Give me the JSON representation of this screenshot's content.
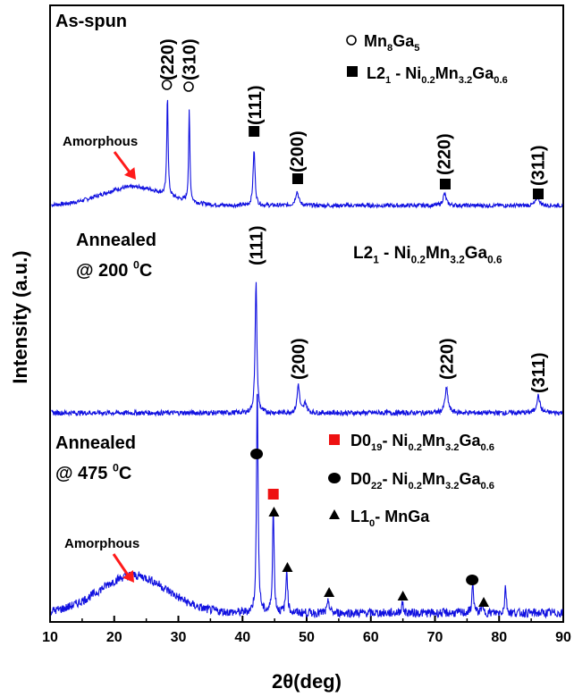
{
  "chart_data": {
    "type": "line",
    "xlabel": "2θ(deg)",
    "ylabel": "Intensity (a.u.)",
    "xlim": [
      10,
      90
    ],
    "x_ticks": [
      "10",
      "20",
      "30",
      "40",
      "50",
      "60",
      "70",
      "80",
      "90"
    ],
    "line_color": "#1010e0",
    "arrow_color": "#ff1a1a",
    "series": [
      {
        "title": "As-spun",
        "peaks": [
          {
            "x": 28.3,
            "h": 0.88,
            "w": 0.12
          },
          {
            "x": 31.7,
            "h": 0.78,
            "w": 0.12
          },
          {
            "x": 41.8,
            "h": 0.47,
            "w": 0.18
          },
          {
            "x": 48.5,
            "h": 0.12,
            "w": 0.3
          },
          {
            "x": 71.5,
            "h": 0.1,
            "w": 0.3
          },
          {
            "x": 86.0,
            "h": 0.08,
            "w": 0.3
          }
        ],
        "hump": {
          "x": 23,
          "h": 0.16,
          "w": 7
        },
        "labels": [
          "(220)",
          "(310)",
          "(111)",
          "(200)",
          "(220)",
          "(311)"
        ],
        "annotation": "Amorphous",
        "legend": [
          {
            "marker": "circle-open",
            "text": "Mn",
            "sub": "8",
            "text2": "Ga",
            "sub2": "5"
          },
          {
            "marker": "square",
            "text": "L2",
            "sub": "1",
            "text2": " - Ni",
            "sub2": "0.2",
            "text3": "Mn",
            "sub3": "3.2",
            "text4": "Ga",
            "sub4": "0.6"
          }
        ]
      },
      {
        "title_line1": "Annealed",
        "title_line2": "@ 200 ",
        "title_sup": "0",
        "title_unit": "C",
        "peaks": [
          {
            "x": 42.1,
            "h": 0.93,
            "w": 0.16
          },
          {
            "x": 48.7,
            "h": 0.2,
            "w": 0.22
          },
          {
            "x": 49.8,
            "h": 0.07,
            "w": 0.25
          },
          {
            "x": 71.8,
            "h": 0.17,
            "w": 0.28
          },
          {
            "x": 86.1,
            "h": 0.12,
            "w": 0.3
          }
        ],
        "labels": [
          "(111)",
          "(200)",
          "(220)",
          "(311)"
        ],
        "phase_text": "L2",
        "phase_sub": "1",
        "phase_rest": " - Ni",
        "phase_sub2": "0.2",
        "phase_mn": "Mn",
        "phase_sub3": "3.2",
        "phase_ga": "Ga",
        "phase_sub4": "0.6"
      },
      {
        "title_line1": "Annealed",
        "title_line2": "@ 475 ",
        "title_sup": "0",
        "title_unit": "C",
        "peaks": [
          {
            "x": 42.3,
            "h": 0.93,
            "w": 0.14
          },
          {
            "x": 44.8,
            "h": 0.42,
            "w": 0.14
          },
          {
            "x": 46.9,
            "h": 0.18,
            "w": 0.15
          },
          {
            "x": 53.4,
            "h": 0.05,
            "w": 0.18
          },
          {
            "x": 64.9,
            "h": 0.04,
            "w": 0.18
          },
          {
            "x": 75.9,
            "h": 0.12,
            "w": 0.15
          },
          {
            "x": 77.3,
            "h": 0.03,
            "w": 0.15
          },
          {
            "x": 81.0,
            "h": 0.11,
            "w": 0.14
          }
        ],
        "hump": {
          "x": 23,
          "h": 0.15,
          "w": 7.5
        },
        "annotation": "Amorphous",
        "legend": [
          {
            "marker": "square-red",
            "text": "D0",
            "sub": "19",
            "text2": "- Ni",
            "sub2": "0.2",
            "text3": "Mn",
            "sub3": "3.2",
            "text4": "Ga",
            "sub4": "0.6"
          },
          {
            "marker": "ellipse",
            "text": "D0",
            "sub": "22",
            "text2": "- Ni",
            "sub2": "0.2",
            "text3": "Mn",
            "sub3": "3.2",
            "text4": "Ga",
            "sub4": "0.6"
          },
          {
            "marker": "triangle",
            "text": "L1",
            "sub": "0",
            "text2": "-  MnGa"
          }
        ]
      }
    ]
  }
}
